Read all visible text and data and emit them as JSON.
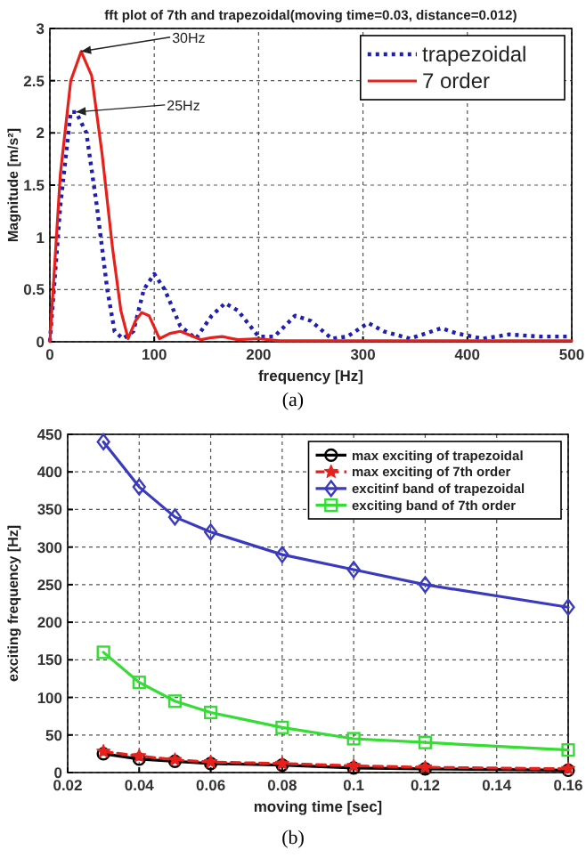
{
  "chart_data": [
    {
      "type": "line",
      "title": "fft plot of 7th and trapezoidal(moving time=0.03, distance=0.012)",
      "xlabel": "frequency [Hz]",
      "ylabel": "Magnitude [m/s²]",
      "xlim": [
        0,
        500
      ],
      "ylim": [
        0,
        3
      ],
      "xticks": [
        0,
        100,
        200,
        300,
        400,
        500
      ],
      "yticks": [
        0,
        0.5,
        1,
        1.5,
        2,
        2.5,
        3
      ],
      "grid": true,
      "legend": "top right",
      "marker": "none",
      "series": [
        {
          "name": "trapezoidal",
          "color": "#1f1fb4",
          "line_style": "dotted",
          "x": [
            0,
            10,
            20,
            25,
            35,
            45,
            55,
            62,
            70,
            80,
            90,
            100,
            110,
            125,
            140,
            155,
            168,
            180,
            200,
            215,
            235,
            250,
            270,
            285,
            305,
            320,
            345,
            375,
            390,
            415,
            440,
            470,
            500
          ],
          "values": [
            0,
            1.3,
            2.2,
            2.2,
            2.0,
            1.3,
            0.5,
            0.1,
            0.03,
            0.1,
            0.5,
            0.65,
            0.5,
            0.15,
            0.03,
            0.25,
            0.37,
            0.3,
            0.05,
            0.05,
            0.25,
            0.2,
            0.03,
            0.05,
            0.18,
            0.1,
            0.03,
            0.13,
            0.08,
            0.03,
            0.07,
            0.05,
            0.05
          ]
        },
        {
          "name": "7 order",
          "color": "#e8201c",
          "line_style": "solid",
          "x": [
            0,
            10,
            20,
            30,
            40,
            50,
            60,
            68,
            75,
            82,
            88,
            95,
            105,
            115,
            125,
            135,
            145,
            155,
            165,
            180,
            200,
            220,
            500
          ],
          "values": [
            0,
            1.6,
            2.5,
            2.78,
            2.55,
            1.8,
            0.9,
            0.3,
            0.03,
            0.2,
            0.28,
            0.25,
            0.03,
            0.08,
            0.1,
            0.06,
            0.02,
            0.04,
            0.05,
            0.02,
            0.03,
            0.01,
            0.01
          ]
        }
      ],
      "annotations": [
        {
          "text": "30Hz",
          "x": 30,
          "y": 2.78
        },
        {
          "text": "25Hz",
          "x": 25,
          "y": 2.2
        },
        "(a)"
      ]
    },
    {
      "type": "line",
      "xlabel": "moving time [sec]",
      "ylabel": "exciting frequency [Hz]",
      "xlim": [
        0.02,
        0.16
      ],
      "ylim": [
        0,
        450
      ],
      "xticks": [
        0.02,
        0.04,
        0.06,
        0.08,
        0.1,
        0.12,
        0.14,
        0.16
      ],
      "yticks": [
        0,
        50,
        100,
        150,
        200,
        250,
        300,
        350,
        400,
        450
      ],
      "grid": true,
      "legend": "top right",
      "series": [
        {
          "name": "max exciting of trapezoidal",
          "color": "#000000",
          "marker": "circle",
          "line_style": "solid",
          "x": [
            0.03,
            0.04,
            0.05,
            0.06,
            0.08,
            0.1,
            0.12,
            0.16
          ],
          "values": [
            25,
            18,
            15,
            12,
            10,
            6,
            5,
            3
          ]
        },
        {
          "name": "max exciting of 7th order",
          "color": "#e8201c",
          "marker": "star",
          "line_style": "dashed",
          "x": [
            0.03,
            0.04,
            0.05,
            0.06,
            0.08,
            0.1,
            0.12,
            0.16
          ],
          "values": [
            28,
            22,
            17,
            14,
            12,
            9,
            7,
            5
          ]
        },
        {
          "name": "excitinf band of trapezoidal",
          "color": "#3a3ac0",
          "marker": "diamond",
          "line_style": "solid",
          "x": [
            0.03,
            0.04,
            0.05,
            0.06,
            0.08,
            0.1,
            0.12,
            0.16
          ],
          "values": [
            440,
            380,
            340,
            320,
            290,
            270,
            250,
            220
          ]
        },
        {
          "name": "exciting band of 7th order",
          "color": "#33dd33",
          "marker": "square",
          "line_style": "solid",
          "x": [
            0.03,
            0.04,
            0.05,
            0.06,
            0.08,
            0.1,
            0.12,
            0.16
          ],
          "values": [
            160,
            120,
            95,
            80,
            60,
            45,
            40,
            30
          ]
        }
      ],
      "annotations": [
        "(b)"
      ]
    }
  ]
}
